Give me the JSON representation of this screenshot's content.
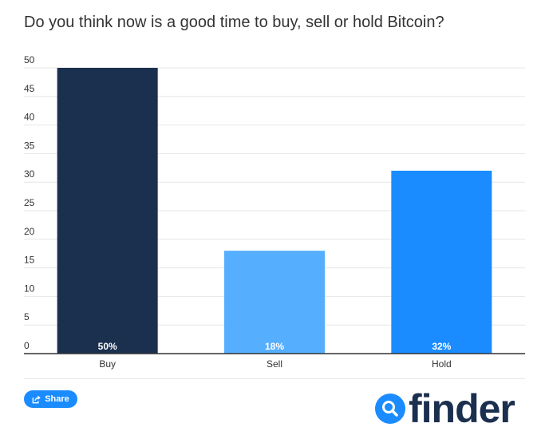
{
  "colors": {
    "buy": "#1b2f4e",
    "sell": "#55aefe",
    "hold": "#1a8cff",
    "grid": "#e6e6e6",
    "axis": "#333333",
    "brand": "#1b2f4e",
    "share_bg": "#1a8cff"
  },
  "chart_data": {
    "type": "bar",
    "title": "Do you think now is a good time to buy, sell or hold Bitcoin?",
    "categories": [
      "Buy",
      "Sell",
      "Hold"
    ],
    "values": [
      50,
      18,
      32
    ],
    "data_labels": [
      "50%",
      "18%",
      "32%"
    ],
    "bar_colors": [
      "#1b2f4e",
      "#55aefe",
      "#1a8cff"
    ],
    "ylim": [
      0,
      50
    ],
    "yticks": [
      0,
      5,
      10,
      15,
      20,
      25,
      30,
      35,
      40,
      45,
      50
    ],
    "grid": true,
    "xlabel": "",
    "ylabel": ""
  },
  "share": {
    "label": "Share",
    "icon": "share-icon"
  },
  "logo": {
    "text": "finder",
    "icon": "magnifier-icon"
  }
}
